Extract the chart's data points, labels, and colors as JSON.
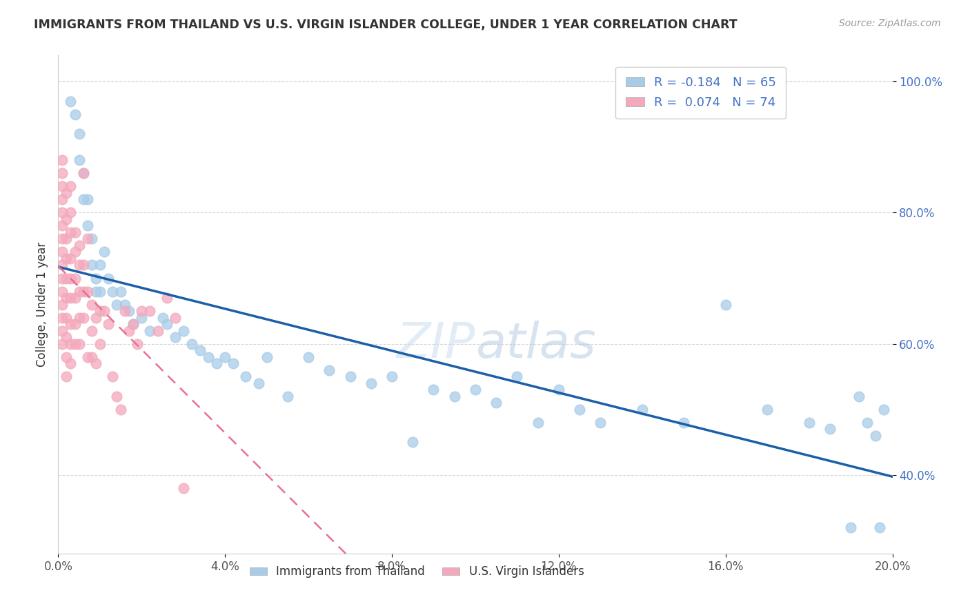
{
  "title": "IMMIGRANTS FROM THAILAND VS U.S. VIRGIN ISLANDER COLLEGE, UNDER 1 YEAR CORRELATION CHART",
  "source": "Source: ZipAtlas.com",
  "ylabel": "College, Under 1 year",
  "legend_labels": [
    "Immigrants from Thailand",
    "U.S. Virgin Islanders"
  ],
  "r_blue": -0.184,
  "r_pink": 0.074,
  "n_blue": 65,
  "n_pink": 74,
  "blue_color": "#a8cce8",
  "pink_color": "#f4a8bc",
  "blue_line_color": "#1a5fa8",
  "pink_line_color": "#e87090",
  "xlim": [
    0.0,
    0.2
  ],
  "ylim": [
    0.28,
    1.04
  ],
  "xticks": [
    0.0,
    0.04,
    0.08,
    0.12,
    0.16,
    0.2
  ],
  "yticks": [
    0.4,
    0.6,
    0.8,
    1.0
  ],
  "blue_x": [
    0.003,
    0.004,
    0.005,
    0.005,
    0.006,
    0.006,
    0.007,
    0.007,
    0.008,
    0.008,
    0.009,
    0.009,
    0.01,
    0.01,
    0.011,
    0.012,
    0.013,
    0.014,
    0.015,
    0.016,
    0.017,
    0.018,
    0.02,
    0.022,
    0.025,
    0.026,
    0.028,
    0.03,
    0.032,
    0.034,
    0.036,
    0.038,
    0.04,
    0.042,
    0.045,
    0.048,
    0.05,
    0.055,
    0.06,
    0.065,
    0.07,
    0.075,
    0.08,
    0.085,
    0.09,
    0.095,
    0.1,
    0.105,
    0.11,
    0.115,
    0.12,
    0.125,
    0.13,
    0.14,
    0.15,
    0.16,
    0.17,
    0.18,
    0.185,
    0.19,
    0.192,
    0.194,
    0.196,
    0.197,
    0.198
  ],
  "blue_y": [
    0.97,
    0.95,
    0.92,
    0.88,
    0.86,
    0.82,
    0.82,
    0.78,
    0.76,
    0.72,
    0.7,
    0.68,
    0.72,
    0.68,
    0.74,
    0.7,
    0.68,
    0.66,
    0.68,
    0.66,
    0.65,
    0.63,
    0.64,
    0.62,
    0.64,
    0.63,
    0.61,
    0.62,
    0.6,
    0.59,
    0.58,
    0.57,
    0.58,
    0.57,
    0.55,
    0.54,
    0.58,
    0.52,
    0.58,
    0.56,
    0.55,
    0.54,
    0.55,
    0.45,
    0.53,
    0.52,
    0.53,
    0.51,
    0.55,
    0.48,
    0.53,
    0.5,
    0.48,
    0.5,
    0.48,
    0.66,
    0.5,
    0.48,
    0.47,
    0.32,
    0.52,
    0.48,
    0.46,
    0.32,
    0.5
  ],
  "pink_x": [
    0.001,
    0.001,
    0.001,
    0.001,
    0.001,
    0.001,
    0.001,
    0.001,
    0.001,
    0.001,
    0.001,
    0.001,
    0.001,
    0.001,
    0.001,
    0.002,
    0.002,
    0.002,
    0.002,
    0.002,
    0.002,
    0.002,
    0.002,
    0.002,
    0.002,
    0.003,
    0.003,
    0.003,
    0.003,
    0.003,
    0.003,
    0.003,
    0.003,
    0.003,
    0.004,
    0.004,
    0.004,
    0.004,
    0.004,
    0.004,
    0.005,
    0.005,
    0.005,
    0.005,
    0.005,
    0.006,
    0.006,
    0.006,
    0.006,
    0.007,
    0.007,
    0.007,
    0.008,
    0.008,
    0.008,
    0.009,
    0.009,
    0.01,
    0.01,
    0.011,
    0.012,
    0.013,
    0.014,
    0.015,
    0.016,
    0.017,
    0.018,
    0.019,
    0.02,
    0.022,
    0.024,
    0.026,
    0.028,
    0.03
  ],
  "pink_y": [
    0.88,
    0.86,
    0.84,
    0.82,
    0.8,
    0.78,
    0.76,
    0.74,
    0.72,
    0.7,
    0.68,
    0.66,
    0.64,
    0.62,
    0.6,
    0.83,
    0.79,
    0.76,
    0.73,
    0.7,
    0.67,
    0.64,
    0.61,
    0.58,
    0.55,
    0.84,
    0.8,
    0.77,
    0.73,
    0.7,
    0.67,
    0.63,
    0.6,
    0.57,
    0.77,
    0.74,
    0.7,
    0.67,
    0.63,
    0.6,
    0.75,
    0.72,
    0.68,
    0.64,
    0.6,
    0.86,
    0.72,
    0.68,
    0.64,
    0.76,
    0.68,
    0.58,
    0.66,
    0.62,
    0.58,
    0.64,
    0.57,
    0.65,
    0.6,
    0.65,
    0.63,
    0.55,
    0.52,
    0.5,
    0.65,
    0.62,
    0.63,
    0.6,
    0.65,
    0.65,
    0.62,
    0.67,
    0.64,
    0.38
  ]
}
